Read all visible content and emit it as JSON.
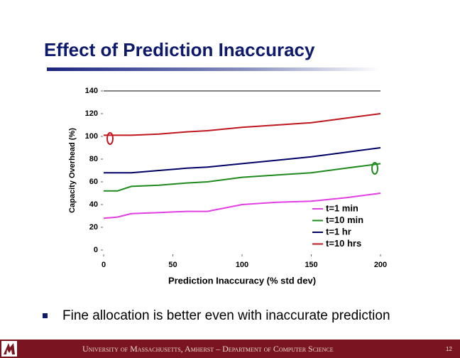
{
  "slide": {
    "title": "Effect of Prediction Inaccuracy",
    "bullet": "Fine allocation is better even with inaccurate prediction",
    "footer": "University of Massachusetts, Amherst – Department of Computer Science",
    "page": "12"
  },
  "chart_data": {
    "type": "line",
    "x_label": "Prediction Inaccuracy (% std dev)",
    "y_label": "Capacity Overhead (%)",
    "x": [
      0,
      10,
      20,
      40,
      60,
      75,
      100,
      125,
      150,
      175,
      200
    ],
    "series": [
      {
        "name": "t=1 min",
        "color": "#e23ee2",
        "values": [
          28,
          29,
          32,
          33,
          34,
          34,
          40,
          42,
          43,
          46,
          50
        ]
      },
      {
        "name": "t=10 min",
        "color": "#1e8a1e",
        "values": [
          52,
          52,
          56,
          57,
          59,
          60,
          64,
          66,
          68,
          72,
          76
        ]
      },
      {
        "name": "t=1 hr",
        "color": "#000066",
        "values": [
          68,
          68,
          68,
          70,
          72,
          73,
          76,
          79,
          82,
          86,
          90
        ]
      },
      {
        "name": "t=10 hrs",
        "color": "#c0161e",
        "values": [
          101,
          101,
          101,
          102,
          104,
          105,
          108,
          110,
          112,
          116,
          120
        ]
      }
    ],
    "xlim": [
      0,
      200
    ],
    "xticks": [
      0,
      50,
      100,
      150,
      200
    ],
    "ylim": [
      0,
      140
    ],
    "yticks": [
      0,
      20,
      40,
      60,
      80,
      100,
      120,
      140
    ],
    "legend": "lower right"
  }
}
